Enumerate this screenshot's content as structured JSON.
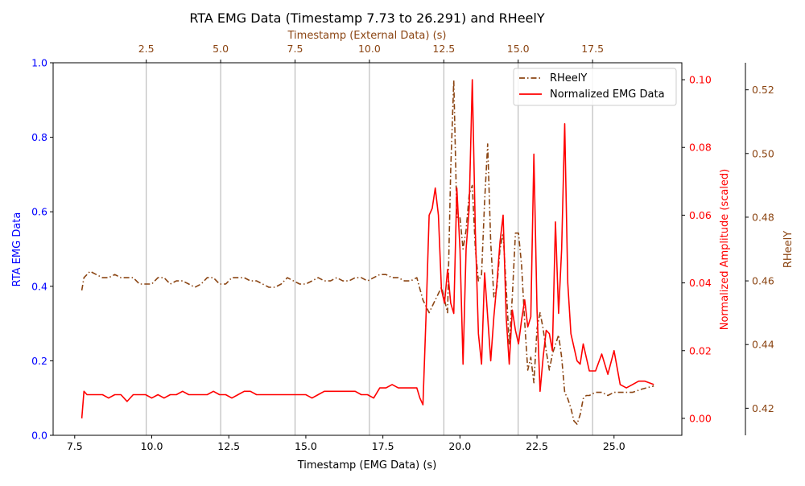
{
  "chart_data": {
    "type": "line",
    "title": "RTA EMG Data (Timestamp 7.73 to 26.291) and RHeelY",
    "xlabel": "Timestamp (EMG Data) (s)",
    "x2label": "Timestamp (External Data) (s)",
    "ylabel": "RTA EMG Data",
    "y2label": "Normalized Amplitude (scaled)",
    "y3label": "RHeelY",
    "xlim": [
      6.8,
      27.2
    ],
    "ylim": [
      0,
      1
    ],
    "y2lim": [
      -0.005,
      0.105
    ],
    "y3lim": [
      0.4115,
      0.5285
    ],
    "x2lim": [
      -0.63,
      20.5
    ],
    "x_ticks": [
      "7.5",
      "10.0",
      "12.5",
      "15.0",
      "17.5",
      "20.0",
      "22.5",
      "25.0"
    ],
    "x2_ticks": [
      "2.5",
      "5.0",
      "7.5",
      "10.0",
      "12.5",
      "15.0",
      "17.5"
    ],
    "y_ticks": [
      "0.0",
      "0.2",
      "0.4",
      "0.6",
      "0.8",
      "1.0"
    ],
    "y2_ticks": [
      "0.00",
      "0.02",
      "0.04",
      "0.06",
      "0.08",
      "0.10"
    ],
    "y3_ticks": [
      "0.42",
      "0.44",
      "0.46",
      "0.48",
      "0.50",
      "0.52"
    ],
    "grid": "vertical lines at top-axis ticks",
    "legend": "upper-right",
    "colors": {
      "primary_axis": "#0000ff",
      "emg": "#ff0000",
      "rheel": "#8b4513",
      "text": "#000000"
    },
    "series": [
      {
        "name": "RHeelY",
        "axis": "y3",
        "style": "dashdot",
        "x": [
          7.73,
          7.8,
          8.0,
          8.2,
          8.4,
          8.6,
          8.8,
          9.0,
          9.2,
          9.4,
          9.6,
          9.8,
          10.0,
          10.2,
          10.4,
          10.6,
          10.8,
          11.0,
          11.2,
          11.4,
          11.6,
          11.8,
          12.0,
          12.2,
          12.4,
          12.6,
          12.8,
          13.0,
          13.2,
          13.4,
          13.6,
          13.8,
          14.0,
          14.2,
          14.4,
          14.6,
          14.8,
          15.0,
          15.2,
          15.4,
          15.6,
          15.8,
          16.0,
          16.2,
          16.4,
          16.6,
          16.8,
          17.0,
          17.2,
          17.4,
          17.6,
          17.8,
          18.0,
          18.2,
          18.4,
          18.6,
          18.8,
          19.0,
          19.2,
          19.4,
          19.6,
          19.7,
          19.8,
          19.9,
          20.0,
          20.1,
          20.2,
          20.3,
          20.4,
          20.5,
          20.6,
          20.7,
          20.8,
          20.9,
          21.0,
          21.1,
          21.2,
          21.3,
          21.4,
          21.5,
          21.6,
          21.7,
          21.8,
          21.9,
          22.0,
          22.1,
          22.2,
          22.3,
          22.4,
          22.5,
          22.6,
          22.7,
          22.8,
          22.9,
          23.0,
          23.1,
          23.2,
          23.3,
          23.4,
          23.5,
          23.6,
          23.7,
          23.8,
          23.9,
          24.0,
          24.1,
          24.2,
          24.4,
          24.6,
          24.8,
          25.0,
          25.3,
          25.6,
          25.9,
          26.291
        ],
        "y": [
          0.457,
          0.461,
          0.463,
          0.462,
          0.461,
          0.461,
          0.462,
          0.461,
          0.461,
          0.461,
          0.459,
          0.459,
          0.459,
          0.461,
          0.461,
          0.459,
          0.46,
          0.46,
          0.459,
          0.458,
          0.459,
          0.461,
          0.461,
          0.459,
          0.459,
          0.461,
          0.461,
          0.461,
          0.46,
          0.46,
          0.459,
          0.458,
          0.458,
          0.459,
          0.461,
          0.46,
          0.459,
          0.459,
          0.46,
          0.461,
          0.46,
          0.46,
          0.461,
          0.46,
          0.46,
          0.461,
          0.461,
          0.46,
          0.461,
          0.462,
          0.462,
          0.461,
          0.461,
          0.46,
          0.46,
          0.461,
          0.454,
          0.45,
          0.454,
          0.458,
          0.45,
          0.495,
          0.523,
          0.48,
          0.48,
          0.47,
          0.476,
          0.487,
          0.49,
          0.47,
          0.46,
          0.462,
          0.485,
          0.503,
          0.472,
          0.455,
          0.458,
          0.47,
          0.475,
          0.458,
          0.44,
          0.455,
          0.475,
          0.475,
          0.465,
          0.447,
          0.432,
          0.436,
          0.428,
          0.445,
          0.45,
          0.445,
          0.438,
          0.432,
          0.437,
          0.44,
          0.443,
          0.436,
          0.425,
          0.423,
          0.42,
          0.416,
          0.415,
          0.418,
          0.423,
          0.424,
          0.424,
          0.425,
          0.425,
          0.424,
          0.425,
          0.425,
          0.425,
          0.426,
          0.427
        ]
      },
      {
        "name": "Normalized EMG Data",
        "axis": "y2",
        "style": "solid",
        "x": [
          7.73,
          7.8,
          7.9,
          8.0,
          8.2,
          8.4,
          8.6,
          8.8,
          9.0,
          9.2,
          9.4,
          9.6,
          9.8,
          10.0,
          10.2,
          10.4,
          10.6,
          10.8,
          11.0,
          11.2,
          11.4,
          11.6,
          11.8,
          12.0,
          12.2,
          12.4,
          12.6,
          12.8,
          13.0,
          13.2,
          13.4,
          13.6,
          13.8,
          14.0,
          14.2,
          14.4,
          14.6,
          14.8,
          15.0,
          15.2,
          15.4,
          15.6,
          15.8,
          16.0,
          16.2,
          16.4,
          16.6,
          16.8,
          17.0,
          17.2,
          17.4,
          17.6,
          17.8,
          18.0,
          18.2,
          18.4,
          18.6,
          18.7,
          18.8,
          18.9,
          19.0,
          19.1,
          19.2,
          19.3,
          19.4,
          19.5,
          19.6,
          19.7,
          19.8,
          19.9,
          20.0,
          20.1,
          20.2,
          20.3,
          20.4,
          20.5,
          20.6,
          20.7,
          20.8,
          20.9,
          21.0,
          21.1,
          21.2,
          21.3,
          21.4,
          21.5,
          21.6,
          21.7,
          21.8,
          21.9,
          22.0,
          22.1,
          22.2,
          22.3,
          22.4,
          22.5,
          22.6,
          22.7,
          22.8,
          22.9,
          23.0,
          23.1,
          23.2,
          23.3,
          23.4,
          23.5,
          23.6,
          23.7,
          23.8,
          23.9,
          24.0,
          24.1,
          24.2,
          24.4,
          24.6,
          24.8,
          25.0,
          25.2,
          25.4,
          25.6,
          25.8,
          26.0,
          26.291
        ],
        "y": [
          0.0,
          0.008,
          0.007,
          0.007,
          0.007,
          0.007,
          0.006,
          0.007,
          0.007,
          0.005,
          0.007,
          0.007,
          0.007,
          0.006,
          0.007,
          0.006,
          0.007,
          0.007,
          0.008,
          0.007,
          0.007,
          0.007,
          0.007,
          0.008,
          0.007,
          0.007,
          0.006,
          0.007,
          0.008,
          0.008,
          0.007,
          0.007,
          0.007,
          0.007,
          0.007,
          0.007,
          0.007,
          0.007,
          0.007,
          0.006,
          0.007,
          0.008,
          0.008,
          0.008,
          0.008,
          0.008,
          0.008,
          0.007,
          0.007,
          0.006,
          0.009,
          0.009,
          0.01,
          0.009,
          0.009,
          0.009,
          0.009,
          0.006,
          0.004,
          0.03,
          0.06,
          0.062,
          0.068,
          0.06,
          0.038,
          0.034,
          0.044,
          0.034,
          0.031,
          0.068,
          0.05,
          0.016,
          0.05,
          0.062,
          0.1,
          0.055,
          0.025,
          0.016,
          0.043,
          0.03,
          0.017,
          0.03,
          0.04,
          0.052,
          0.06,
          0.03,
          0.016,
          0.032,
          0.026,
          0.022,
          0.029,
          0.035,
          0.027,
          0.03,
          0.078,
          0.032,
          0.008,
          0.018,
          0.026,
          0.025,
          0.02,
          0.058,
          0.031,
          0.05,
          0.087,
          0.04,
          0.025,
          0.021,
          0.017,
          0.016,
          0.022,
          0.018,
          0.014,
          0.014,
          0.019,
          0.013,
          0.02,
          0.01,
          0.009,
          0.01,
          0.011,
          0.011,
          0.01
        ]
      }
    ]
  }
}
